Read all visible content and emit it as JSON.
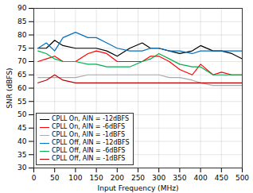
{
  "chart_data": {
    "type": "line",
    "xlabel": "Input Frequency (MHz)",
    "ylabel": "SNR (dBFS)",
    "xlim": [
      0,
      500
    ],
    "ylim": [
      30,
      90
    ],
    "xticks": [
      0,
      50,
      100,
      150,
      200,
      250,
      300,
      350,
      400,
      450,
      500
    ],
    "yticks": [
      30,
      35,
      40,
      45,
      50,
      55,
      60,
      65,
      70,
      75,
      80,
      85,
      90
    ],
    "grid": true,
    "legend": "lower left",
    "x": [
      10,
      30,
      50,
      70,
      100,
      130,
      150,
      175,
      200,
      230,
      260,
      280,
      300,
      325,
      350,
      380,
      400,
      430,
      450,
      475,
      500
    ],
    "series": [
      {
        "name": "CPLL On, AIN = -12dBFS",
        "color": "#000000",
        "values": [
          75,
          75,
          78,
          76,
          75,
          75,
          75,
          74,
          72,
          75,
          77,
          75,
          75,
          74,
          73,
          74,
          76,
          74,
          74,
          73,
          71
        ]
      },
      {
        "name": "CPLL On, AIN = -6dBFS",
        "color": "#ff0000",
        "values": [
          70,
          71,
          72,
          70,
          70,
          73,
          74,
          73,
          70,
          70,
          70,
          72,
          72,
          70,
          67,
          65,
          69,
          65,
          66,
          65,
          65
        ]
      },
      {
        "name": "CPLL On, AIN = -1dBFS",
        "color": "#aaaaaa",
        "values": [
          64,
          64,
          64,
          64,
          64,
          65,
          65,
          65,
          65,
          65,
          65,
          65,
          65,
          64,
          64,
          63,
          62,
          61,
          61,
          61,
          61
        ]
      },
      {
        "name": "CPLL Off, AIN = -12dBFS",
        "color": "#0070c0",
        "values": [
          75,
          77,
          74,
          79,
          81,
          79,
          79,
          77,
          75,
          74,
          74,
          75,
          75,
          74,
          74,
          73,
          74,
          74,
          74,
          74,
          74
        ]
      },
      {
        "name": "CPLL Off, AIN = -6dBFS",
        "color": "#00b050",
        "values": [
          74,
          73,
          71,
          70,
          70,
          69,
          69,
          68,
          68,
          68,
          70,
          71,
          73,
          71,
          69,
          68,
          68,
          65,
          65,
          65,
          65
        ]
      },
      {
        "name": "CPLL Off, AIN = -1dBFS",
        "color": "#c00000",
        "values": [
          62,
          63,
          65,
          63,
          62,
          62,
          62,
          62,
          62,
          62,
          62,
          62,
          62,
          62,
          62,
          62,
          62,
          62,
          62,
          62,
          62
        ]
      }
    ]
  }
}
